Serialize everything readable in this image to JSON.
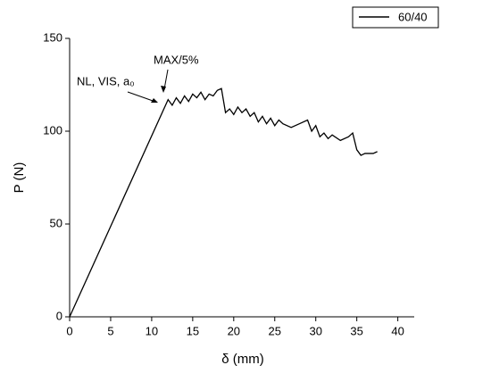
{
  "chart_data": {
    "type": "line",
    "xlabel": "δ (mm)",
    "ylabel": "P (N)",
    "xlim": [
      0,
      42
    ],
    "xticks": [
      0,
      5,
      10,
      15,
      20,
      25,
      30,
      35,
      40
    ],
    "ylim": [
      0,
      150
    ],
    "yticks": [
      0,
      50,
      100,
      150
    ],
    "legend": "top-right",
    "annotations": [
      "NL, VIS, a₀",
      "MAX/5%"
    ],
    "series": [
      {
        "name": "60/40",
        "color": "#000000",
        "x": [
          0,
          12,
          12.5,
          13,
          13.5,
          14,
          14.5,
          15,
          15.5,
          16,
          16.5,
          17,
          17.5,
          18,
          18.5,
          19,
          19.5,
          20,
          20.5,
          21,
          21.5,
          22,
          22.5,
          23,
          23.5,
          24,
          24.5,
          25,
          25.5,
          26,
          27,
          28,
          29,
          29.5,
          30,
          30.5,
          31,
          31.5,
          32,
          33,
          34,
          34.5,
          35,
          35.5,
          36,
          37,
          37.5
        ],
        "values": [
          0,
          117,
          114,
          118,
          115,
          119,
          116,
          120,
          118,
          121,
          117,
          120,
          119,
          122,
          123,
          110,
          112,
          109,
          113,
          110,
          112,
          108,
          110,
          105,
          108,
          104,
          107,
          103,
          106,
          104,
          102,
          104,
          106,
          100,
          103,
          97,
          99,
          96,
          98,
          95,
          97,
          99,
          90,
          87,
          88,
          88,
          89
        ]
      }
    ]
  }
}
